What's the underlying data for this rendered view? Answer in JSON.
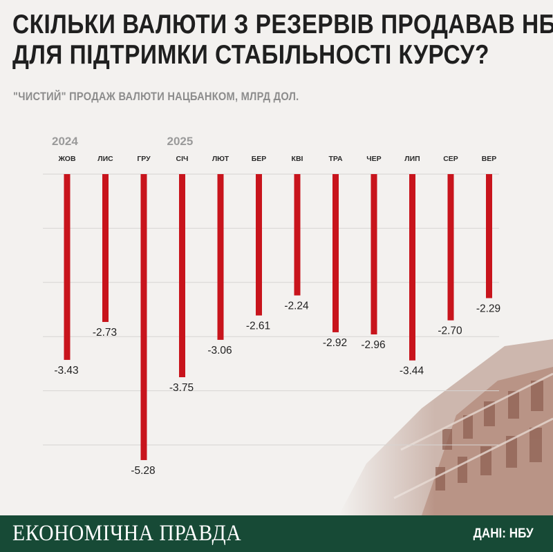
{
  "title_line1": "СКІЛЬКИ ВАЛЮТИ З РЕЗЕРВІВ ПРОДАВАВ НБУ",
  "title_line2": "ДЛЯ ПІДТРИМКИ СТАБІЛЬНОСТІ КУРСУ?",
  "subtitle": "\"ЧИСТИЙ\" ПРОДАЖ ВАЛЮТИ НАЦБАНКОМ, МЛРД ДОЛ.",
  "footer": {
    "brand": "ЕКОНОМІЧНА ПРАВДА",
    "source": "ДАНІ: НБУ"
  },
  "colors": {
    "bar": "#c8141c",
    "footer": "#174a36",
    "background": "#f3f1ef"
  },
  "chart_data": {
    "type": "bar",
    "title": "",
    "xlabel": "",
    "ylabel": "",
    "year_labels": [
      {
        "label": "2024",
        "category_index": 0
      },
      {
        "label": "2025",
        "category_index": 3
      }
    ],
    "categories": [
      "ЖОВ",
      "ЛИС",
      "ГРУ",
      "СІЧ",
      "ЛЮТ",
      "БЕР",
      "КВІ",
      "ТРА",
      "ЧЕР",
      "ЛИП",
      "СЕР",
      "ВЕР"
    ],
    "values": [
      -3.43,
      -2.73,
      -5.28,
      -3.75,
      -3.06,
      -2.61,
      -2.24,
      -2.92,
      -2.96,
      -3.44,
      -2.7,
      -2.29
    ],
    "value_labels": [
      "-3.43",
      "-2.73",
      "-5.28",
      "-3.75",
      "-3.06",
      "-2.61",
      "-2.24",
      "-2.92",
      "-2.96",
      "-3.44",
      "-2.70",
      "-2.29"
    ],
    "ylim": [
      -5,
      0
    ],
    "grid": true,
    "legend": "none"
  }
}
